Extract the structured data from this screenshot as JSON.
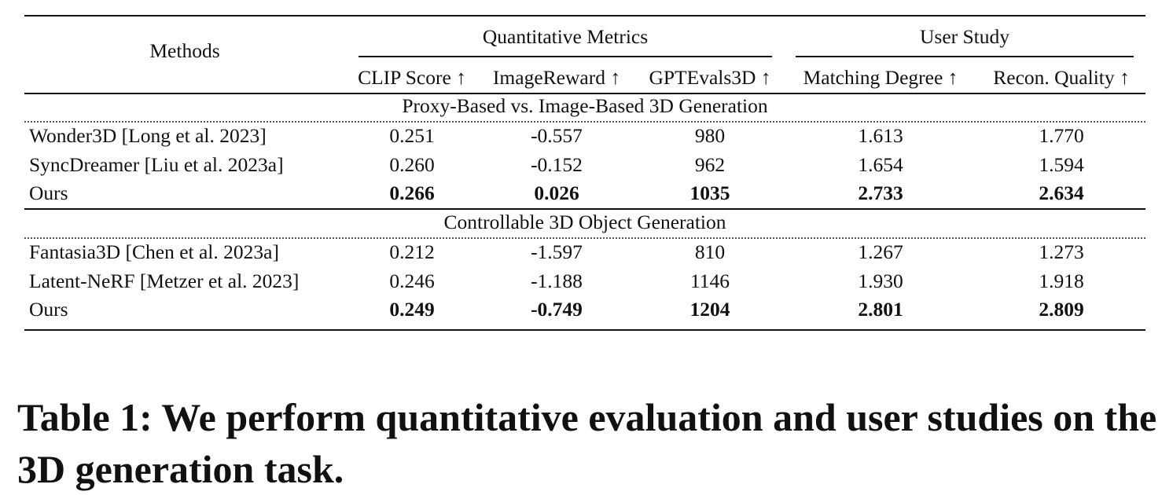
{
  "table": {
    "methods_header": "Methods",
    "group_headers": [
      "Quantitative Metrics",
      "User Study"
    ],
    "columns": [
      "CLIP Score ↑",
      "ImageReward ↑",
      "GPTEvals3D ↑",
      "Matching Degree ↑",
      "Recon. Quality ↑"
    ],
    "sections": [
      {
        "title": "Proxy-Based vs. Image-Based 3D Generation",
        "rows": [
          {
            "method": "Wonder3D [Long et al. 2023]",
            "values": [
              "0.251",
              "-0.557",
              "980",
              "1.613",
              "1.770"
            ],
            "bold": false
          },
          {
            "method": "SyncDreamer [Liu et al. 2023a]",
            "values": [
              "0.260",
              "-0.152",
              "962",
              "1.654",
              "1.594"
            ],
            "bold": false
          },
          {
            "method": "Ours",
            "values": [
              "0.266",
              "0.026",
              "1035",
              "2.733",
              "2.634"
            ],
            "bold": true
          }
        ]
      },
      {
        "title": "Controllable 3D Object Generation",
        "rows": [
          {
            "method": "Fantasia3D [Chen et al. 2023a]",
            "values": [
              "0.212",
              "-1.597",
              "810",
              "1.267",
              "1.273"
            ],
            "bold": false
          },
          {
            "method": "Latent-NeRF [Metzer et al. 2023]",
            "values": [
              "0.246",
              "-1.188",
              "1146",
              "1.930",
              "1.918"
            ],
            "bold": false
          },
          {
            "method": "Ours",
            "values": [
              "0.249",
              "-0.749",
              "1204",
              "2.801",
              "2.809"
            ],
            "bold": true
          }
        ]
      }
    ]
  },
  "caption": {
    "text": "Table 1: We perform quantitative evaluation and user studies on the 3D generation task."
  }
}
